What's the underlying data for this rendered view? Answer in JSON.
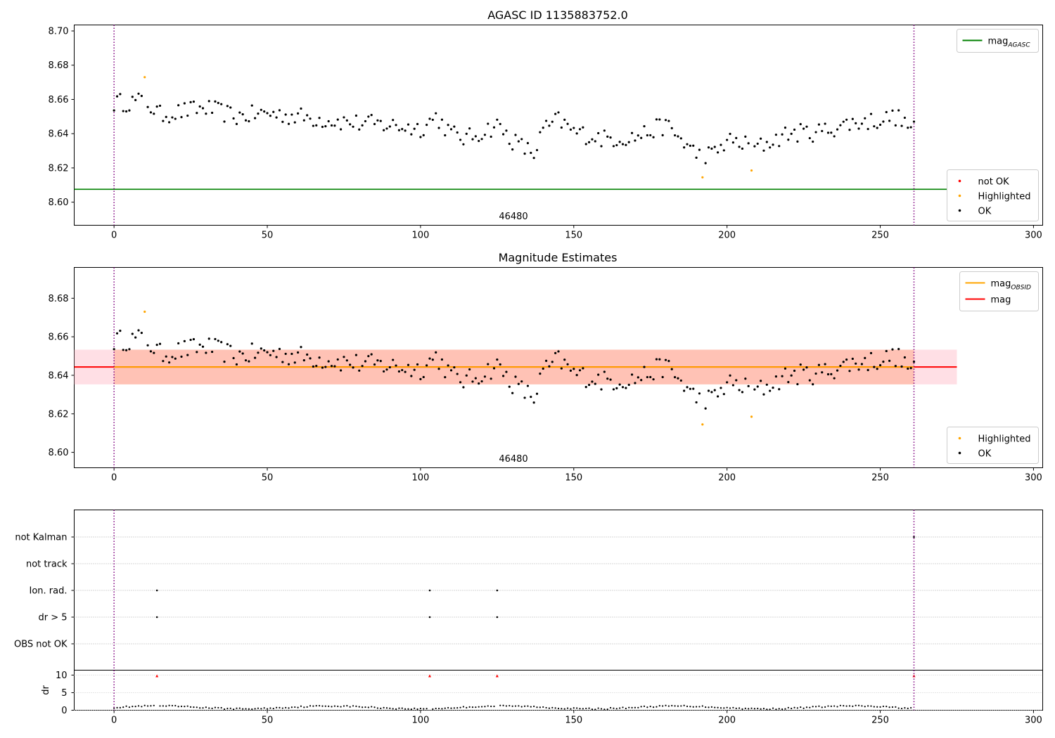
{
  "chart_data": [
    {
      "type": "scatter",
      "title": "AGASC ID 1135883752.0",
      "xlim": [
        -13,
        303
      ],
      "ylim": [
        8.5865,
        8.7035
      ],
      "xticks": [
        0,
        50,
        100,
        150,
        200,
        250,
        300
      ],
      "yticks": [
        8.6,
        8.62,
        8.64,
        8.66,
        8.68,
        8.7
      ],
      "ytick_labels": [
        "8.60",
        "8.62",
        "8.64",
        "8.66",
        "8.68",
        "8.70"
      ],
      "obsid_label": "46480",
      "obs_bounds": [
        0,
        261
      ],
      "mag_agasc": 8.6075,
      "legend_lines": [
        {
          "label": "mag",
          "sub": "AGASC",
          "color": "#008000"
        }
      ],
      "legend_points": [
        {
          "label": "not OK",
          "color": "#ff0000"
        },
        {
          "label": "Highlighted",
          "color": "#ffa500"
        },
        {
          "label": "OK",
          "color": "#000000"
        }
      ],
      "highlighted": [
        [
          10,
          8.673
        ],
        [
          192,
          8.6145
        ],
        [
          208,
          8.6185
        ]
      ]
    },
    {
      "type": "scatter",
      "title": "Magnitude Estimates",
      "xlim": [
        -13,
        303
      ],
      "ylim": [
        8.592,
        8.696
      ],
      "xticks": [
        0,
        50,
        100,
        150,
        200,
        250,
        300
      ],
      "yticks": [
        8.6,
        8.62,
        8.64,
        8.66,
        8.68
      ],
      "ytick_labels": [
        "8.60",
        "8.62",
        "8.64",
        "8.66",
        "8.68"
      ],
      "obsid_label": "46480",
      "obs_bounds": [
        0,
        261
      ],
      "mag": 8.6443,
      "mag_obsid": 8.6443,
      "band_mag": [
        8.6353,
        8.6533
      ],
      "band_obsid": [
        8.6353,
        8.6533
      ],
      "band_mag_x": [
        -13,
        275
      ],
      "legend_lines": [
        {
          "label": "mag",
          "sub": "OBSID",
          "color": "#ffa500"
        },
        {
          "label": "mag",
          "sub": "",
          "color": "#ff0000"
        }
      ],
      "legend_points": [
        {
          "label": "Highlighted",
          "color": "#ffa500"
        },
        {
          "label": "OK",
          "color": "#000000"
        }
      ],
      "highlighted": [
        [
          10,
          8.673
        ],
        [
          192,
          8.6145
        ],
        [
          208,
          8.6185
        ]
      ]
    },
    {
      "type": "scatter",
      "title": "",
      "xlim": [
        -13,
        303
      ],
      "xticks": [
        0,
        50,
        100,
        150,
        200,
        250,
        300
      ],
      "flag_categories": [
        "not Kalman",
        "not track",
        "Ion. rad.",
        "dr > 5",
        "OBS not OK"
      ],
      "flag_points": [
        {
          "category": "not Kalman",
          "x": [
            261
          ]
        },
        {
          "category": "not track",
          "x": []
        },
        {
          "category": "Ion. rad.",
          "x": [
            14,
            103,
            125
          ]
        },
        {
          "category": "dr > 5",
          "x": [
            14,
            103,
            125
          ]
        },
        {
          "category": "OBS not OK",
          "x": []
        }
      ],
      "dr": {
        "ylabel": "dr",
        "ylim": [
          -0.5,
          10.5
        ],
        "yticks": [
          0,
          5,
          10
        ],
        "ytick_labels": [
          "0",
          "5",
          "10"
        ],
        "clipped": [
          14,
          103,
          125,
          261
        ]
      },
      "obs_bounds": [
        0,
        261
      ]
    }
  ]
}
